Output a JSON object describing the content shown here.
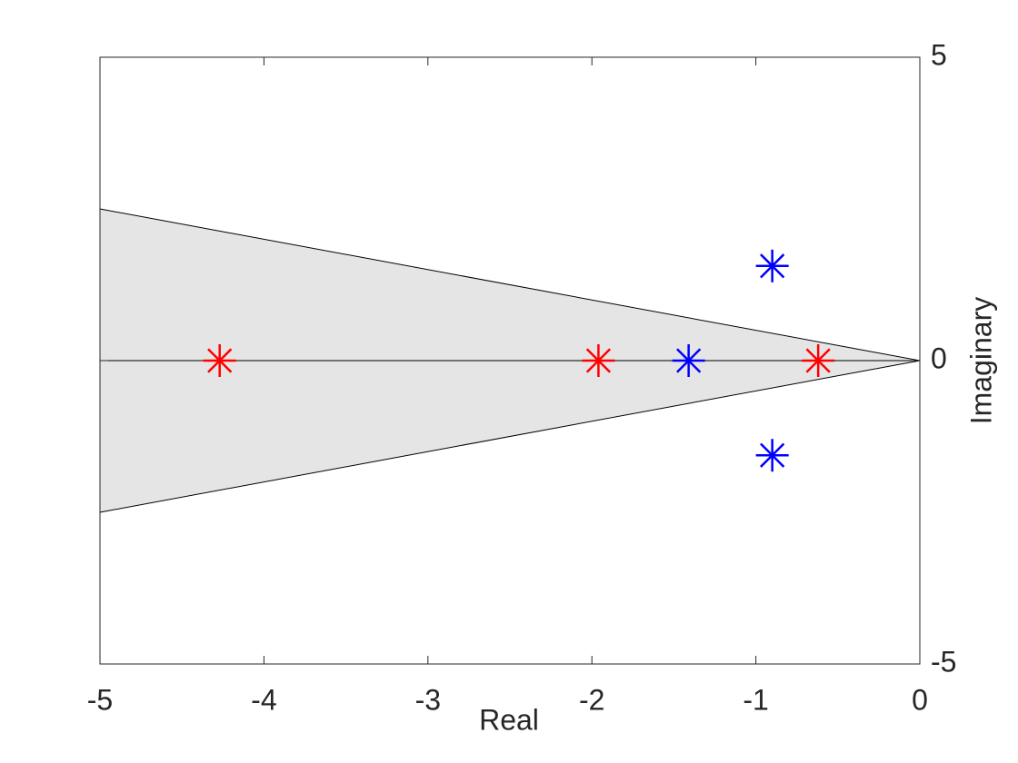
{
  "chart_data": {
    "type": "scatter",
    "xlabel": "Real",
    "ylabel": "Imaginary",
    "xlim": [
      -5,
      0
    ],
    "ylim": [
      -5,
      5
    ],
    "xticks": [
      -5,
      -4,
      -3,
      -2,
      -1,
      0
    ],
    "yticks": [
      -5,
      0,
      5
    ],
    "region": {
      "x": [
        0,
        -5,
        -5
      ],
      "y": [
        0,
        2.5,
        -2.5
      ],
      "color": "#e5e5e5"
    },
    "reference_line_y": 0,
    "marker": "*",
    "series": [
      {
        "color": "#ff0000",
        "x": [
          -4.27,
          -1.96,
          -0.62
        ],
        "y": [
          0,
          0,
          0
        ]
      },
      {
        "color": "#0000ff",
        "x": [
          -1.41,
          -0.9,
          -0.9
        ],
        "y": [
          0,
          1.56,
          -1.56
        ]
      }
    ]
  }
}
